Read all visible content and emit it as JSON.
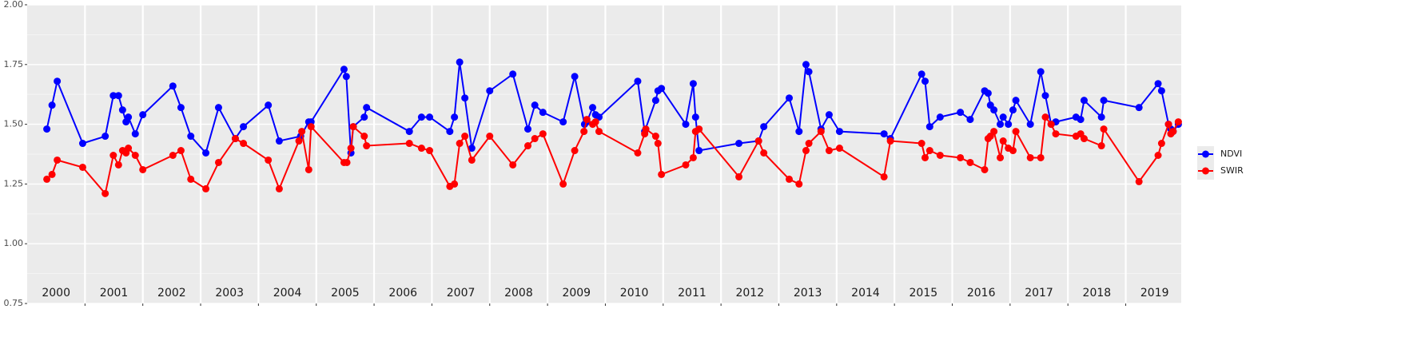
{
  "chart_data": {
    "type": "line",
    "ylim": [
      0.75,
      2.0
    ],
    "yticks": [
      {
        "value": 0.75,
        "label": "0.75"
      },
      {
        "value": 1.0,
        "label": "1.00"
      },
      {
        "value": 1.25,
        "label": "1.25"
      },
      {
        "value": 1.5,
        "label": "1.50"
      },
      {
        "value": 1.75,
        "label": "1.75"
      },
      {
        "value": 2.0,
        "label": "2.00"
      }
    ],
    "xlim": [
      2000,
      2019.96
    ],
    "xgrid": [
      2001,
      2002,
      2003,
      2004,
      2005,
      2006,
      2007,
      2008,
      2009,
      2010,
      2011,
      2012,
      2013,
      2014,
      2015,
      2016,
      2017,
      2018,
      2019
    ],
    "year_labels": [
      {
        "value": 2000.5,
        "label": "2000"
      },
      {
        "value": 2001.5,
        "label": "2001"
      },
      {
        "value": 2002.5,
        "label": "2002"
      },
      {
        "value": 2003.5,
        "label": "2003"
      },
      {
        "value": 2004.5,
        "label": "2004"
      },
      {
        "value": 2005.5,
        "label": "2005"
      },
      {
        "value": 2006.5,
        "label": "2006"
      },
      {
        "value": 2007.5,
        "label": "2007"
      },
      {
        "value": 2008.5,
        "label": "2008"
      },
      {
        "value": 2009.5,
        "label": "2009"
      },
      {
        "value": 2010.5,
        "label": "2010"
      },
      {
        "value": 2011.5,
        "label": "2011"
      },
      {
        "value": 2012.5,
        "label": "2012"
      },
      {
        "value": 2013.5,
        "label": "2013"
      },
      {
        "value": 2014.5,
        "label": "2014"
      },
      {
        "value": 2015.5,
        "label": "2015"
      },
      {
        "value": 2016.5,
        "label": "2016"
      },
      {
        "value": 2017.5,
        "label": "2017"
      },
      {
        "value": 2018.5,
        "label": "2018"
      },
      {
        "value": 2019.5,
        "label": "2019"
      }
    ],
    "legend": "right",
    "series": [
      {
        "name": "NDVI",
        "color": "#0000ff",
        "x": [
          2000.34,
          2000.43,
          2000.52,
          2000.96,
          2001.35,
          2001.49,
          2001.58,
          2001.65,
          2001.71,
          2001.75,
          2001.87,
          2002.0,
          2002.52,
          2002.66,
          2002.83,
          2003.09,
          2003.31,
          2003.6,
          2003.74,
          2004.17,
          2004.36,
          2004.73,
          2004.87,
          2004.91,
          2005.48,
          2005.52,
          2005.6,
          2005.64,
          2005.83,
          2005.87,
          2006.61,
          2006.82,
          2006.96,
          2007.31,
          2007.39,
          2007.48,
          2007.57,
          2007.69,
          2008.0,
          2008.4,
          2008.66,
          2008.78,
          2008.92,
          2009.27,
          2009.47,
          2009.64,
          2009.68,
          2009.78,
          2009.83,
          2009.89,
          2010.56,
          2010.68,
          2010.87,
          2010.91,
          2010.97,
          2011.39,
          2011.52,
          2011.56,
          2011.62,
          2012.31,
          2012.65,
          2012.74,
          2013.18,
          2013.35,
          2013.47,
          2013.52,
          2013.73,
          2013.87,
          2014.05,
          2014.82,
          2014.93,
          2015.47,
          2015.53,
          2015.61,
          2015.79,
          2016.14,
          2016.31,
          2016.56,
          2016.62,
          2016.66,
          2016.72,
          2016.83,
          2016.88,
          2016.97,
          2017.05,
          2017.1,
          2017.35,
          2017.53,
          2017.61,
          2017.71,
          2017.79,
          2018.14,
          2018.22,
          2018.28,
          2018.58,
          2018.62,
          2019.23,
          2019.56,
          2019.62,
          2019.74,
          2019.78,
          2019.82,
          2019.91
        ],
        "values": [
          1.48,
          1.58,
          1.68,
          1.42,
          1.45,
          1.62,
          1.62,
          1.56,
          1.51,
          1.53,
          1.46,
          1.54,
          1.66,
          1.57,
          1.45,
          1.38,
          1.57,
          1.44,
          1.49,
          1.58,
          1.43,
          1.45,
          1.51,
          1.51,
          1.73,
          1.7,
          1.38,
          1.49,
          1.53,
          1.57,
          1.47,
          1.53,
          1.53,
          1.47,
          1.53,
          1.76,
          1.61,
          1.4,
          1.64,
          1.71,
          1.48,
          1.58,
          1.55,
          1.51,
          1.7,
          1.5,
          1.51,
          1.57,
          1.54,
          1.53,
          1.68,
          1.47,
          1.6,
          1.64,
          1.65,
          1.5,
          1.67,
          1.53,
          1.39,
          1.42,
          1.43,
          1.49,
          1.61,
          1.47,
          1.75,
          1.72,
          1.48,
          1.54,
          1.47,
          1.46,
          1.44,
          1.71,
          1.68,
          1.49,
          1.53,
          1.55,
          1.52,
          1.64,
          1.63,
          1.58,
          1.56,
          1.5,
          1.53,
          1.5,
          1.56,
          1.6,
          1.5,
          1.72,
          1.62,
          1.5,
          1.51,
          1.53,
          1.52,
          1.6,
          1.53,
          1.6,
          1.57,
          1.67,
          1.64,
          1.5,
          1.48,
          1.47,
          1.5
        ]
      },
      {
        "name": "SWIR",
        "color": "#ff0000",
        "x": [
          2000.34,
          2000.43,
          2000.52,
          2000.96,
          2001.35,
          2001.49,
          2001.58,
          2001.65,
          2001.71,
          2001.75,
          2001.87,
          2002.0,
          2002.52,
          2002.66,
          2002.83,
          2003.09,
          2003.31,
          2003.6,
          2003.74,
          2004.17,
          2004.36,
          2004.7,
          2004.75,
          2004.87,
          2004.91,
          2005.48,
          2005.53,
          2005.6,
          2005.64,
          2005.83,
          2005.87,
          2006.61,
          2006.82,
          2006.96,
          2007.31,
          2007.39,
          2007.48,
          2007.57,
          2007.69,
          2008.0,
          2008.4,
          2008.66,
          2008.78,
          2008.92,
          2009.27,
          2009.47,
          2009.63,
          2009.68,
          2009.78,
          2009.83,
          2009.89,
          2010.56,
          2010.68,
          2010.7,
          2010.87,
          2010.91,
          2010.97,
          2011.39,
          2011.52,
          2011.56,
          2011.62,
          2012.31,
          2012.65,
          2012.74,
          2013.18,
          2013.35,
          2013.47,
          2013.52,
          2013.73,
          2013.87,
          2014.05,
          2014.82,
          2014.93,
          2015.47,
          2015.53,
          2015.61,
          2015.79,
          2016.14,
          2016.31,
          2016.56,
          2016.62,
          2016.66,
          2016.72,
          2016.83,
          2016.88,
          2016.97,
          2017.05,
          2017.1,
          2017.35,
          2017.53,
          2017.61,
          2017.71,
          2017.79,
          2018.14,
          2018.22,
          2018.28,
          2018.58,
          2018.62,
          2019.23,
          2019.56,
          2019.62,
          2019.74,
          2019.78,
          2019.82,
          2019.91
        ],
        "values": [
          1.27,
          1.29,
          1.35,
          1.32,
          1.21,
          1.37,
          1.33,
          1.39,
          1.38,
          1.4,
          1.37,
          1.31,
          1.37,
          1.39,
          1.27,
          1.23,
          1.34,
          1.44,
          1.42,
          1.35,
          1.23,
          1.43,
          1.47,
          1.31,
          1.49,
          1.34,
          1.34,
          1.4,
          1.49,
          1.45,
          1.41,
          1.42,
          1.4,
          1.39,
          1.24,
          1.25,
          1.42,
          1.45,
          1.35,
          1.45,
          1.33,
          1.41,
          1.44,
          1.46,
          1.25,
          1.39,
          1.47,
          1.52,
          1.5,
          1.51,
          1.47,
          1.38,
          1.46,
          1.48,
          1.45,
          1.42,
          1.29,
          1.33,
          1.36,
          1.47,
          1.48,
          1.28,
          1.43,
          1.38,
          1.27,
          1.25,
          1.39,
          1.42,
          1.47,
          1.39,
          1.4,
          1.28,
          1.43,
          1.42,
          1.36,
          1.39,
          1.37,
          1.36,
          1.34,
          1.31,
          1.44,
          1.45,
          1.47,
          1.36,
          1.43,
          1.4,
          1.39,
          1.47,
          1.36,
          1.36,
          1.53,
          1.5,
          1.46,
          1.45,
          1.46,
          1.44,
          1.41,
          1.48,
          1.26,
          1.37,
          1.42,
          1.5,
          1.46,
          1.47,
          1.51
        ]
      }
    ]
  }
}
